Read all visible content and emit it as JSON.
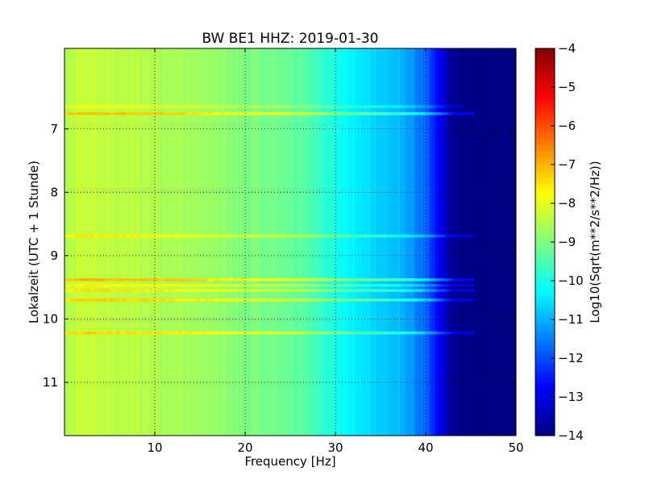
{
  "chart_data": {
    "type": "heatmap",
    "title": "BW BE1 HHZ: 2019-01-30",
    "xlabel": "Frequency [Hz]",
    "ylabel": "Lokalzeit (UTC + 1 Stunde)",
    "xlim": [
      0,
      50
    ],
    "ylim": [
      5.73,
      11.84
    ],
    "y_inverted": true,
    "grid": true,
    "x_ticks": [
      10,
      20,
      30,
      40,
      50
    ],
    "x_tick_labels": [
      "10",
      "20",
      "30",
      "40",
      "50"
    ],
    "y_ticks": [
      7,
      8,
      9,
      10,
      11
    ],
    "y_tick_labels": [
      "7",
      "8",
      "9",
      "10",
      "11"
    ],
    "colorbar": {
      "label": "Log10(Sqrt(m**2/s**2/Hz))",
      "colormap": "jet",
      "range": [
        -14,
        -4
      ],
      "ticks": [
        -4,
        -5,
        -6,
        -7,
        -8,
        -9,
        -10,
        -11,
        -12,
        -13,
        -14
      ],
      "tick_labels": [
        "−4",
        "−5",
        "−6",
        "−7",
        "−8",
        "−9",
        "−10",
        "−11",
        "−12",
        "−13",
        "−14"
      ]
    },
    "spectrum_profile": {
      "frequency_hz": [
        0,
        2,
        5,
        10,
        15,
        20,
        25,
        28,
        30,
        32,
        35,
        38,
        40,
        41,
        42,
        43,
        45,
        50
      ],
      "log10_psd": [
        -8.6,
        -8.3,
        -8.4,
        -8.5,
        -8.7,
        -9.0,
        -9.2,
        -9.6,
        -10.0,
        -10.4,
        -10.7,
        -11.1,
        -11.8,
        -12.5,
        -13.2,
        -13.9,
        -14.0,
        -14.0
      ]
    },
    "horizontal_bands": [
      {
        "time": 6.65,
        "level_offset": 0.5,
        "max_frequency_hz": 44
      },
      {
        "time": 6.76,
        "level_offset": 1.2,
        "max_frequency_hz": 45
      },
      {
        "time": 8.69,
        "level_offset": 0.8,
        "max_frequency_hz": 45
      },
      {
        "time": 9.38,
        "level_offset": 1.3,
        "max_frequency_hz": 45
      },
      {
        "time": 9.47,
        "level_offset": 0.7,
        "max_frequency_hz": 45
      },
      {
        "time": 9.55,
        "level_offset": 0.9,
        "max_frequency_hz": 45
      },
      {
        "time": 9.7,
        "level_offset": 1.1,
        "max_frequency_hz": 45
      },
      {
        "time": 10.22,
        "level_offset": 1.0,
        "max_frequency_hz": 45
      }
    ]
  }
}
